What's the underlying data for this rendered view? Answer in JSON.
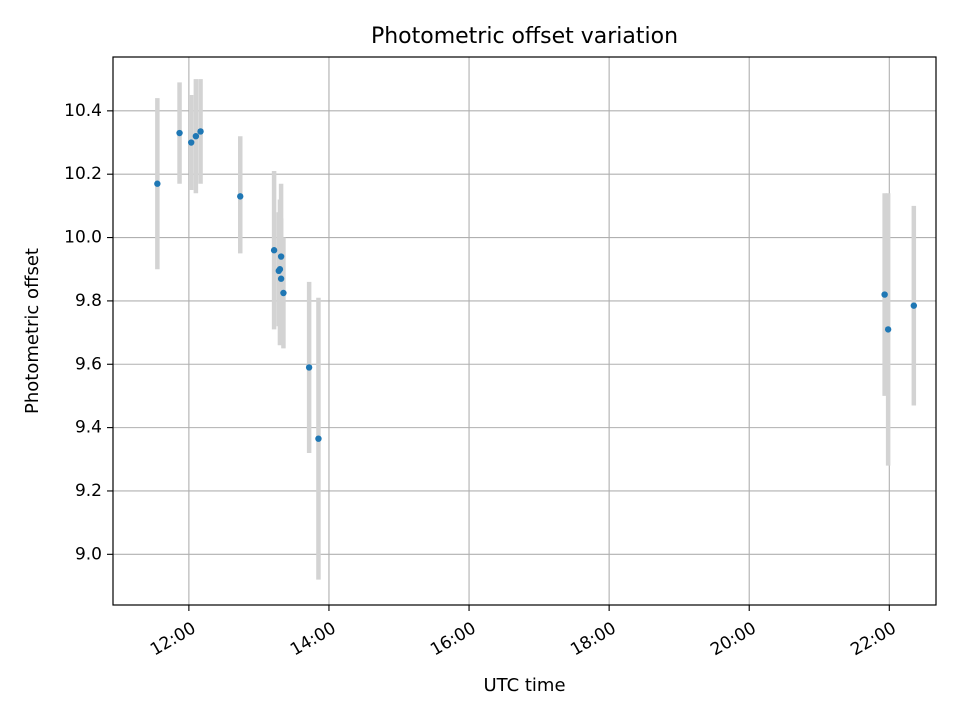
{
  "chart_data": {
    "type": "scatter",
    "title": "Photometric offset variation",
    "xlabel": "UTC time",
    "ylabel": "Photometric offset",
    "xlim": [
      "10:55",
      "22:40"
    ],
    "ylim": [
      8.84,
      10.57
    ],
    "grid": true,
    "x_ticks": [
      "12:00",
      "14:00",
      "16:00",
      "18:00",
      "20:00",
      "22:00"
    ],
    "y_ticks": [
      "9.0",
      "9.2",
      "9.4",
      "9.6",
      "9.8",
      "10.0",
      "10.2",
      "10.4"
    ],
    "colors": {
      "point": "#1f77b4",
      "errorbar": "#d3d3d3",
      "grid": "#b0b0b0"
    },
    "points": [
      {
        "x": "11:33",
        "y": 10.17,
        "yerr_low": 9.9,
        "yerr_high": 10.44
      },
      {
        "x": "11:52",
        "y": 10.33,
        "yerr_low": 10.17,
        "yerr_high": 10.49
      },
      {
        "x": "12:02",
        "y": 10.3,
        "yerr_low": 10.15,
        "yerr_high": 10.45
      },
      {
        "x": "12:06",
        "y": 10.32,
        "yerr_low": 10.14,
        "yerr_high": 10.5
      },
      {
        "x": "12:10",
        "y": 10.335,
        "yerr_low": 10.17,
        "yerr_high": 10.5
      },
      {
        "x": "12:44",
        "y": 10.13,
        "yerr_low": 9.95,
        "yerr_high": 10.32
      },
      {
        "x": "13:13",
        "y": 9.96,
        "yerr_low": 9.71,
        "yerr_high": 10.21
      },
      {
        "x": "13:17",
        "y": 9.895,
        "yerr_low": 9.72,
        "yerr_high": 10.08
      },
      {
        "x": "13:18",
        "y": 9.9,
        "yerr_low": 9.66,
        "yerr_high": 10.12
      },
      {
        "x": "13:19",
        "y": 9.94,
        "yerr_low": 9.7,
        "yerr_high": 10.17
      },
      {
        "x": "13:19",
        "y": 9.87,
        "yerr_low": 9.67,
        "yerr_high": 10.06
      },
      {
        "x": "13:21",
        "y": 9.825,
        "yerr_low": 9.65,
        "yerr_high": 10.0
      },
      {
        "x": "13:43",
        "y": 9.59,
        "yerr_low": 9.32,
        "yerr_high": 9.86
      },
      {
        "x": "13:51",
        "y": 9.365,
        "yerr_low": 8.92,
        "yerr_high": 9.81
      },
      {
        "x": "21:56",
        "y": 9.82,
        "yerr_low": 9.5,
        "yerr_high": 10.14
      },
      {
        "x": "21:59",
        "y": 9.71,
        "yerr_low": 9.28,
        "yerr_high": 10.14
      },
      {
        "x": "22:21",
        "y": 9.785,
        "yerr_low": 9.47,
        "yerr_high": 10.1
      }
    ]
  }
}
